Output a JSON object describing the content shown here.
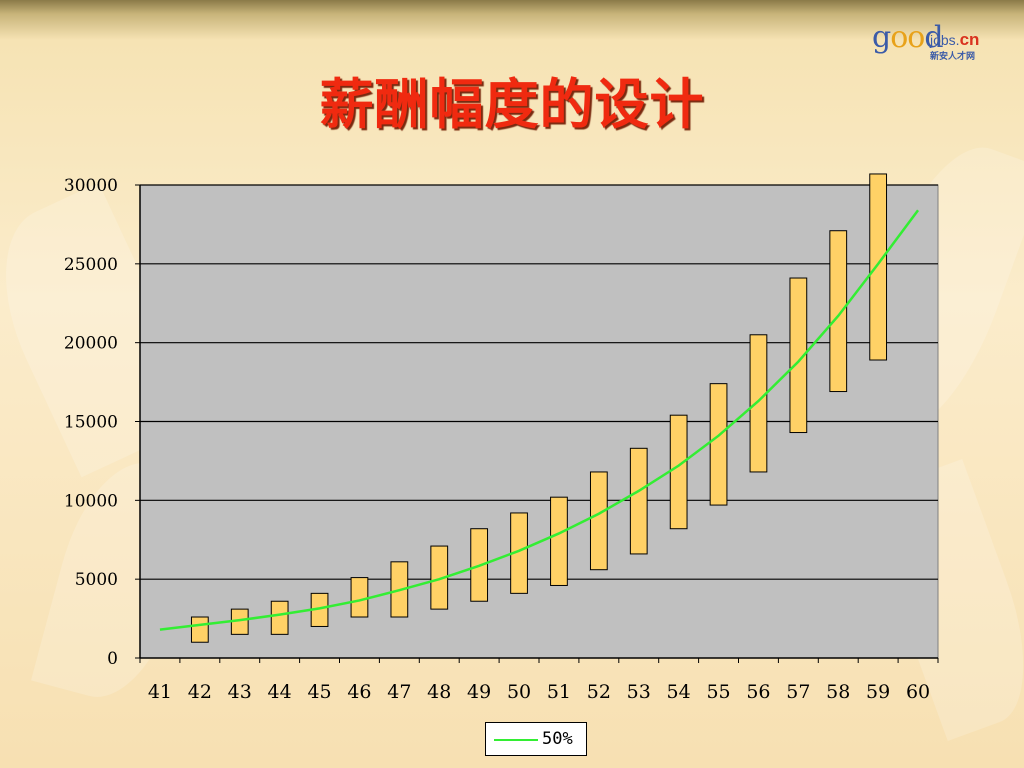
{
  "page": {
    "title": "薪酬幅度的设计",
    "logo": {
      "text_a": "g",
      "text_oo": "oo",
      "text_b": "d",
      "jobs": "jobs.",
      "cn": "cn",
      "subtitle": "新安人才网"
    }
  },
  "chart_data": {
    "type": "bar",
    "subtype": "floating-range-with-line",
    "title": "薪酬幅度的设计",
    "categories": [
      "41",
      "42",
      "43",
      "44",
      "45",
      "46",
      "47",
      "48",
      "49",
      "50",
      "51",
      "52",
      "53",
      "54",
      "55",
      "56",
      "57",
      "58",
      "59",
      "60"
    ],
    "ylim": [
      0,
      30000
    ],
    "yticks": [
      0,
      5000,
      10000,
      15000,
      20000,
      25000,
      30000
    ],
    "grid": true,
    "plot_background": "#c0c0c0",
    "ranges": [
      {
        "category": "42",
        "low": 1000,
        "high": 2600
      },
      {
        "category": "43",
        "low": 1500,
        "high": 3100
      },
      {
        "category": "44",
        "low": 1500,
        "high": 3600
      },
      {
        "category": "45",
        "low": 2000,
        "high": 4100
      },
      {
        "category": "46",
        "low": 2600,
        "high": 5100
      },
      {
        "category": "47",
        "low": 2600,
        "high": 6100
      },
      {
        "category": "48",
        "low": 3100,
        "high": 7100
      },
      {
        "category": "49",
        "low": 3600,
        "high": 8200
      },
      {
        "category": "50",
        "low": 4100,
        "high": 9200
      },
      {
        "category": "51",
        "low": 4600,
        "high": 10200
      },
      {
        "category": "52",
        "low": 5600,
        "high": 11800
      },
      {
        "category": "53",
        "low": 6600,
        "high": 13300
      },
      {
        "category": "54",
        "low": 8200,
        "high": 15400
      },
      {
        "category": "55",
        "low": 9700,
        "high": 17400
      },
      {
        "category": "56",
        "low": 11800,
        "high": 20500
      },
      {
        "category": "57",
        "low": 14300,
        "high": 24100
      },
      {
        "category": "58",
        "low": 16900,
        "high": 27100
      },
      {
        "category": "59",
        "low": 18900,
        "high": 30700
      }
    ],
    "range_color": "#ffd166",
    "series": [
      {
        "name": "50%",
        "color": "#33ee33",
        "values": [
          1800,
          2100,
          2400,
          2750,
          3150,
          3650,
          4300,
          5000,
          5850,
          6800,
          7900,
          9150,
          10600,
          12200,
          14100,
          16300,
          18800,
          21700,
          25000,
          28400
        ]
      }
    ],
    "legend_position": "bottom"
  }
}
